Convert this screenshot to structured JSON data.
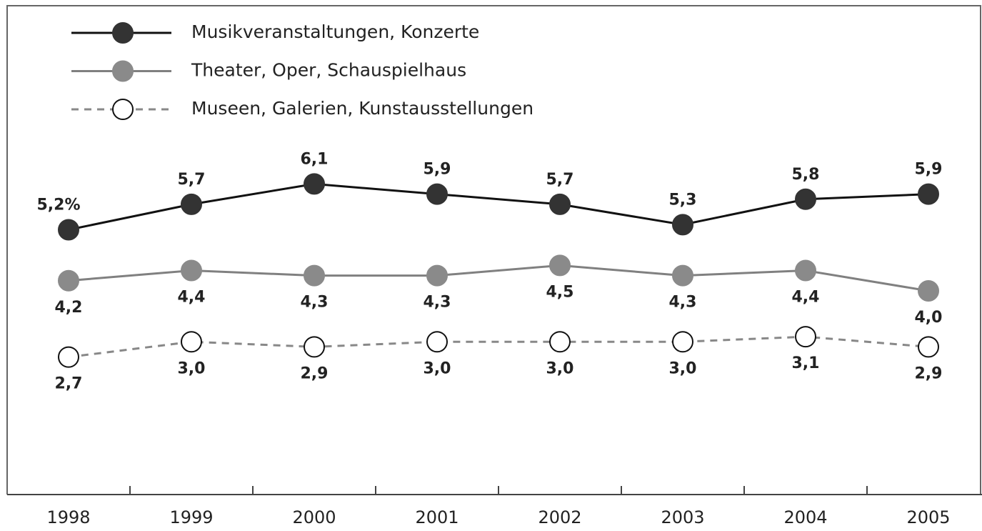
{
  "chart_data": {
    "type": "line",
    "categories": [
      "1998",
      "1999",
      "2000",
      "2001",
      "2002",
      "2003",
      "2004",
      "2005"
    ],
    "series": [
      {
        "name": "Musikveranstaltungen, Konzerte",
        "color": "#111111",
        "marker_color": "#333333",
        "dashed": false,
        "label_position": "above",
        "values": [
          5.2,
          5.7,
          6.1,
          5.9,
          5.7,
          5.3,
          5.8,
          5.9
        ],
        "value_labels": [
          "5,2%",
          "5,7",
          "6,1",
          "5,9",
          "5,7",
          "5,3",
          "5,8",
          "5,9"
        ]
      },
      {
        "name": "Theater, Oper, Schauspielhaus",
        "color": "#808080",
        "marker_color": "#8a8a8a",
        "dashed": false,
        "label_position": "below",
        "values": [
          4.2,
          4.4,
          4.3,
          4.3,
          4.5,
          4.3,
          4.4,
          4.0
        ],
        "value_labels": [
          "4,2",
          "4,4",
          "4,3",
          "4,3",
          "4,5",
          "4,3",
          "4,4",
          "4,0"
        ]
      },
      {
        "name": "Museen, Galerien, Kunstausstellungen",
        "color": "#888888",
        "marker_color": "#ffffff",
        "dashed": true,
        "label_position": "below",
        "values": [
          2.7,
          3.0,
          2.9,
          3.0,
          3.0,
          3.0,
          3.1,
          2.9
        ],
        "value_labels": [
          "2,7",
          "3,0",
          "2,9",
          "3,0",
          "3,0",
          "3,0",
          "3,1",
          "2,9"
        ]
      }
    ],
    "ylim": [
      0,
      9.6
    ]
  }
}
